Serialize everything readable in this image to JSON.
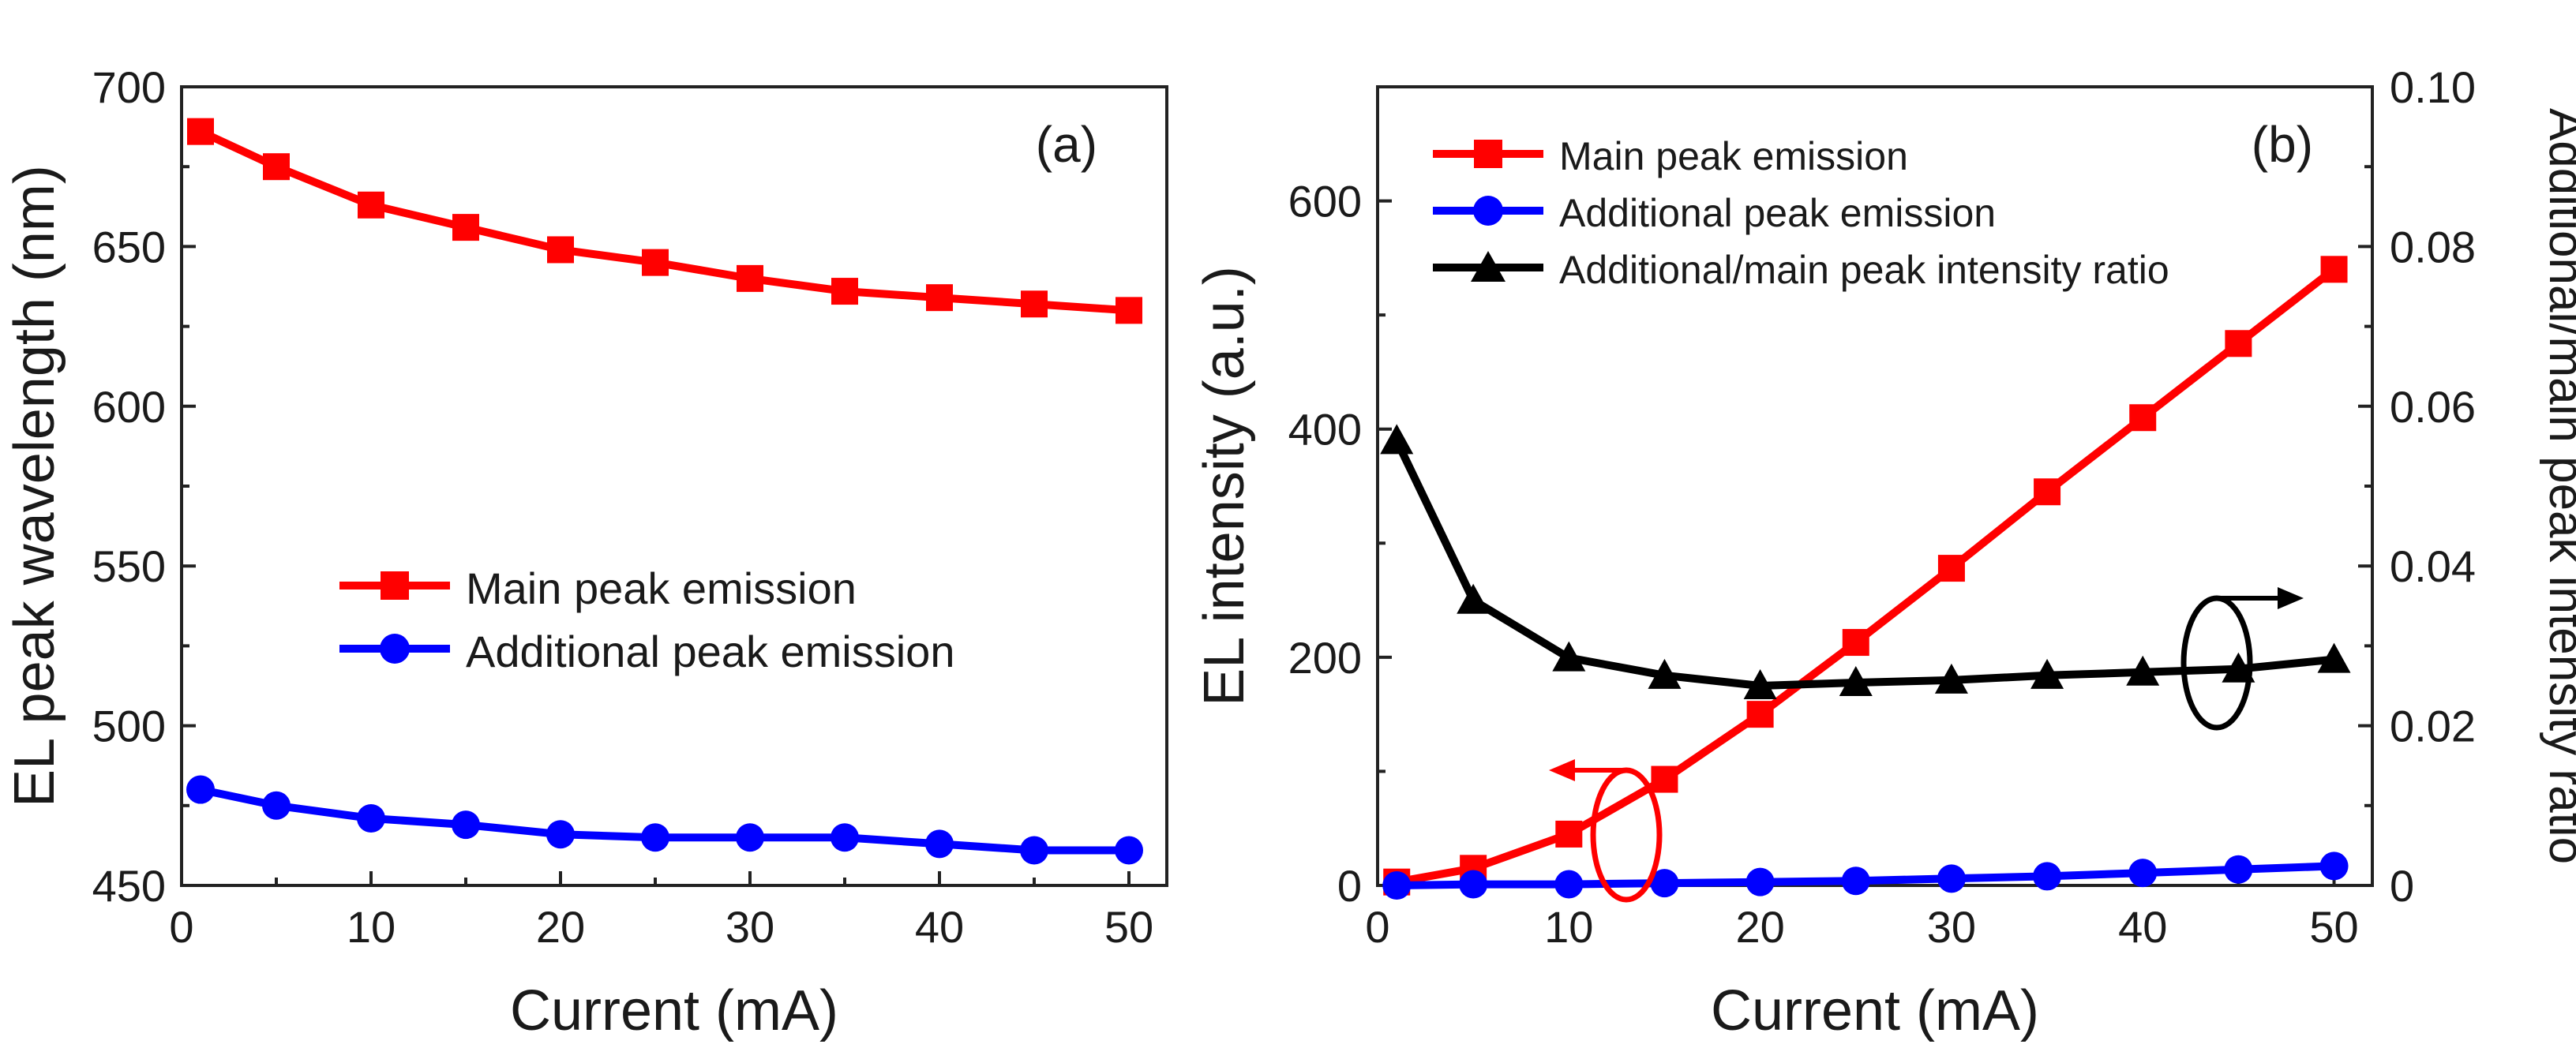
{
  "chart_data": [
    {
      "type": "line",
      "panel": "a",
      "panel_label": "(a)",
      "xlabel": "Current (mA)",
      "ylabel": "EL peak wavelength (nm)",
      "xlim": [
        0,
        52
      ],
      "ylim": [
        450,
        700
      ],
      "x_ticks": [
        0,
        10,
        20,
        30,
        40,
        50
      ],
      "y_ticks": [
        450,
        500,
        550,
        600,
        650,
        700
      ],
      "legend_position": "middle-center",
      "series": [
        {
          "name": "Main peak emission",
          "color": "#ff0000",
          "marker": "square",
          "x": [
            1,
            5,
            10,
            15,
            20,
            25,
            30,
            35,
            40,
            45,
            50
          ],
          "y": [
            686,
            675,
            663,
            656,
            649,
            645,
            640,
            636,
            634,
            632,
            630
          ]
        },
        {
          "name": "Additional peak emission",
          "color": "#0000ff",
          "marker": "circle",
          "x": [
            1,
            5,
            10,
            15,
            20,
            25,
            30,
            35,
            40,
            45,
            50
          ],
          "y": [
            480,
            475,
            471,
            469,
            466,
            465,
            465,
            465,
            463,
            461,
            461
          ]
        }
      ]
    },
    {
      "type": "line",
      "panel": "b",
      "panel_label": "(b)",
      "xlabel": "Current (mA)",
      "ylabel": "EL intensity (a.u.)",
      "ylabel_right": "Additional/main peak intensity ratio",
      "xlim": [
        0,
        52
      ],
      "ylim": [
        0,
        700
      ],
      "ylim_right": [
        0,
        0.1
      ],
      "x_ticks": [
        0,
        10,
        20,
        30,
        40,
        50
      ],
      "y_ticks": [
        0,
        200,
        400,
        600
      ],
      "y_ticks_right": [
        "0",
        "0.02",
        "0.04",
        "0.06",
        "0.08",
        "0.10"
      ],
      "legend_position": "top-left",
      "series": [
        {
          "name": "Main peak emission",
          "color": "#ff0000",
          "marker": "square",
          "axis": "left",
          "x": [
            1,
            5,
            10,
            15,
            20,
            25,
            30,
            35,
            40,
            45,
            50
          ],
          "y": [
            3,
            15,
            45,
            93,
            150,
            213,
            278,
            345,
            410,
            475,
            540
          ]
        },
        {
          "name": "Additional peak emission",
          "color": "#0000ff",
          "marker": "circle",
          "axis": "left",
          "x": [
            1,
            5,
            10,
            15,
            20,
            25,
            30,
            35,
            40,
            45,
            50
          ],
          "y": [
            0,
            1,
            1,
            2,
            3,
            4,
            6,
            8,
            11,
            14,
            17
          ]
        },
        {
          "name": "Additional/main peak intensity ratio",
          "color": "#000000",
          "marker": "triangle",
          "axis": "right",
          "x": [
            1,
            5,
            10,
            15,
            20,
            25,
            30,
            35,
            40,
            45,
            50
          ],
          "y": [
            0.0557,
            0.0357,
            0.0285,
            0.0263,
            0.025,
            0.0254,
            0.0257,
            0.0263,
            0.0267,
            0.0271,
            0.0283
          ]
        }
      ],
      "annotations": [
        {
          "kind": "axis-indicator",
          "points_to": "left-axis",
          "series": "Main peak emission",
          "color": "#ff0000"
        },
        {
          "kind": "axis-indicator",
          "points_to": "right-axis",
          "series": "Additional/main peak intensity ratio",
          "color": "#000000"
        }
      ]
    }
  ]
}
